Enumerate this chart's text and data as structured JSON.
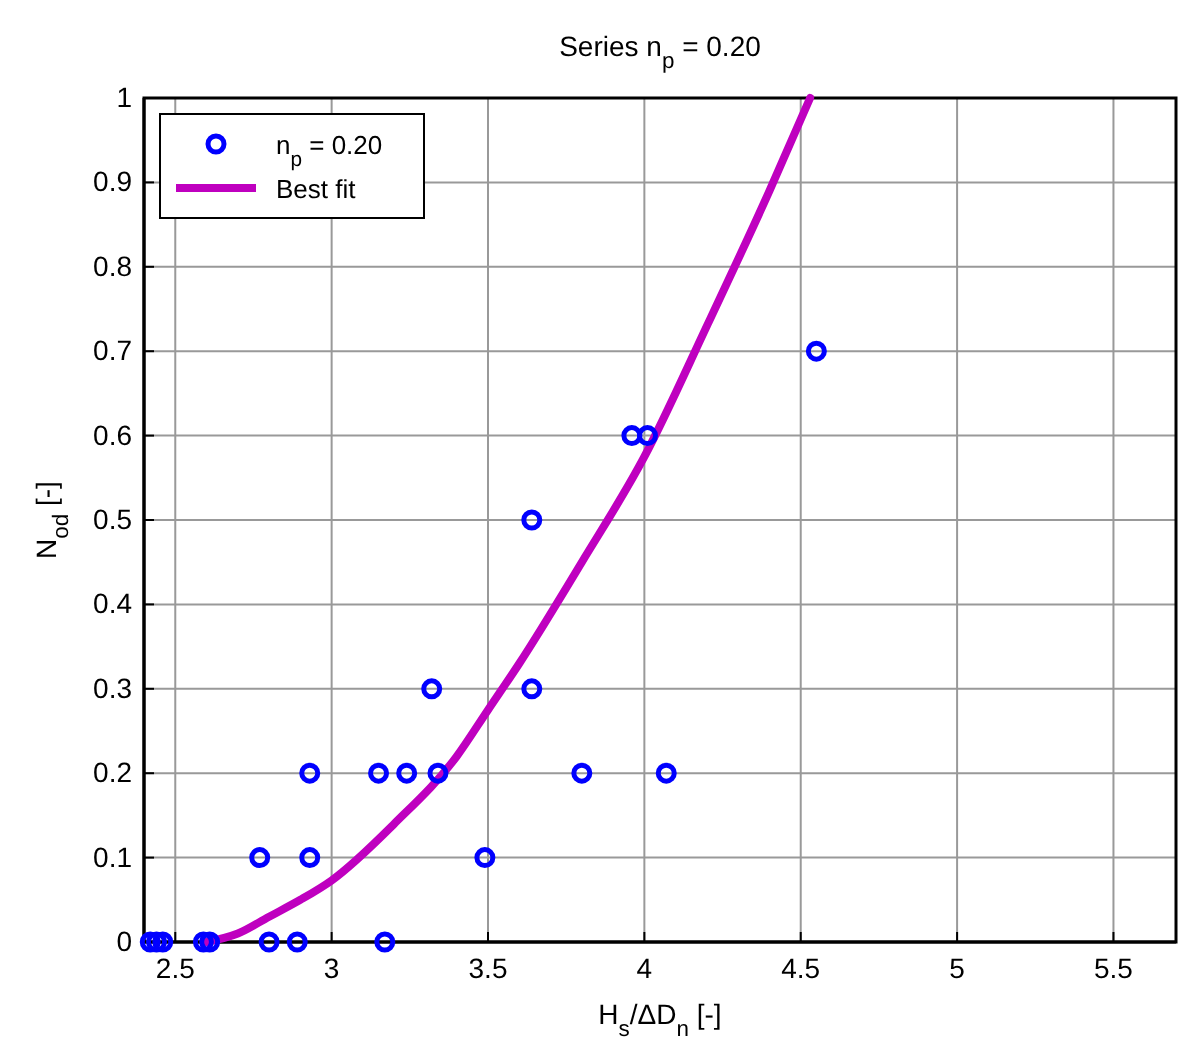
{
  "chart_data": {
    "type": "scatter",
    "title": "Series n$_{p}$ = 0.20",
    "xlabel": "H$_{s}$/ΔD$_{n}$   [-]",
    "ylabel": "N$_{od}$   [-]",
    "xlim": [
      2.4,
      5.7
    ],
    "ylim": [
      0,
      1
    ],
    "xticks": [
      2.5,
      3,
      3.5,
      4,
      4.5,
      5,
      5.5
    ],
    "yticks": [
      0,
      0.1,
      0.2,
      0.3,
      0.4,
      0.5,
      0.6,
      0.7,
      0.8,
      0.9,
      1
    ],
    "grid": true,
    "legend": "top left",
    "series": [
      {
        "name": "n$_{p}$ = 0.20",
        "marker": "circle",
        "color": "#0000ff",
        "x": [
          2.42,
          2.44,
          2.46,
          2.59,
          2.61,
          2.8,
          2.89,
          3.17,
          2.77,
          2.93,
          2.93,
          3.15,
          3.24,
          3.34,
          3.32,
          3.49,
          3.64,
          3.64,
          3.8,
          4.07,
          3.96,
          4.01,
          4.55
        ],
        "values": [
          0,
          0,
          0,
          0,
          0,
          0,
          0,
          0,
          0.1,
          0.1,
          0.2,
          0.2,
          0.2,
          0.2,
          0.3,
          0.1,
          0.5,
          0.3,
          0.2,
          0.2,
          0.6,
          0.6,
          0.7
        ]
      },
      {
        "name": "Best fit",
        "type": "line",
        "color": "#bf00bf",
        "line_style": "solid",
        "x": [
          2.6,
          2.7,
          2.8,
          2.9,
          3.0,
          3.2,
          3.4,
          3.5,
          3.6,
          3.8,
          4.0,
          4.2,
          4.4,
          4.53
        ],
        "values": [
          0,
          0.01,
          0.03,
          0.05,
          0.073,
          0.14,
          0.22,
          0.275,
          0.33,
          0.45,
          0.575,
          0.73,
          0.89,
          1
        ]
      }
    ]
  }
}
